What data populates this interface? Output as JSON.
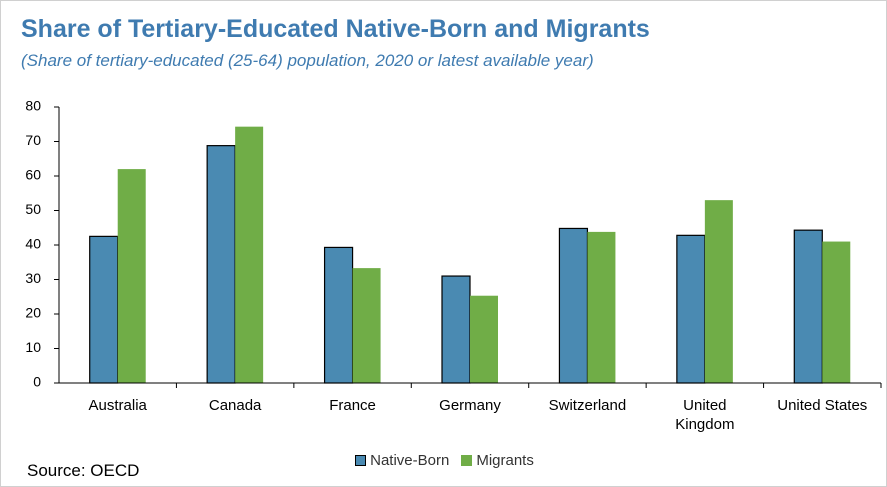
{
  "chart_data": {
    "type": "bar",
    "title": "Share of Tertiary-Educated Native-Born and Migrants",
    "subtitle": "(Share of tertiary-educated (25-64) population, 2020 or latest available year)",
    "categories": [
      "Australia",
      "Canada",
      "France",
      "Germany",
      "Switzerland",
      "United Kingdom",
      "United States"
    ],
    "series": [
      {
        "name": "Native-Born",
        "color": "#4a8ab2",
        "values": [
          42.5,
          68.8,
          39.3,
          31,
          44.8,
          42.8,
          44.3
        ]
      },
      {
        "name": "Migrants",
        "color": "#70ad47",
        "values": [
          62,
          74.3,
          33.3,
          25.3,
          43.8,
          53,
          41
        ]
      }
    ],
    "ylim": [
      0,
      80
    ],
    "yticks": [
      0,
      10,
      20,
      30,
      40,
      50,
      60,
      70,
      80
    ],
    "legend": "bottom",
    "source": "Source: OECD"
  }
}
